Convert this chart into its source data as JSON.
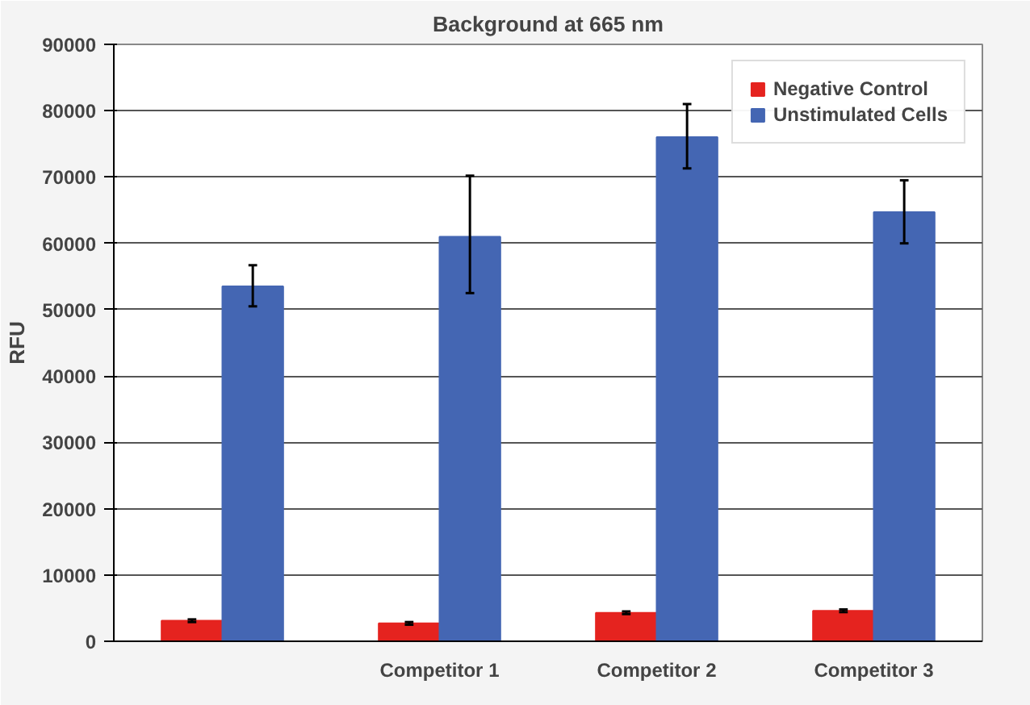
{
  "chart_data": {
    "type": "bar",
    "title": "Background at 665 nm",
    "ylabel": "RFU",
    "categories": [
      null,
      "Competitor 1",
      "Competitor 2",
      "Competitor 3"
    ],
    "series": [
      {
        "name": "Negative Control",
        "color": "#e5231f",
        "values": [
          3100,
          2700,
          4300,
          4600
        ],
        "errors": [
          200,
          200,
          200,
          200
        ]
      },
      {
        "name": "Unstimulated Cells",
        "color": "#4466b3",
        "values": [
          53500,
          61000,
          76000,
          64700
        ],
        "errors": [
          [
            50500,
            56700
          ],
          [
            52500,
            70200
          ],
          [
            71300,
            81000
          ],
          [
            60000,
            69500
          ]
        ]
      }
    ],
    "ylim": [
      0,
      90000
    ],
    "yticks": [
      0,
      10000,
      20000,
      30000,
      40000,
      50000,
      60000,
      70000,
      80000,
      90000
    ],
    "grid": "y",
    "legend": "top right"
  }
}
